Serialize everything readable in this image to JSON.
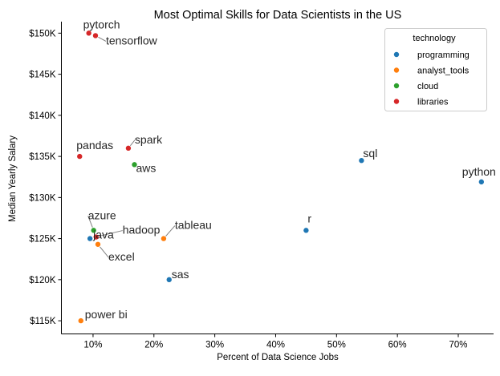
{
  "chart_data": {
    "type": "scatter",
    "title": "Most Optimal Skills for Data Scientists in the US",
    "xlabel": "Percent of Data Science Jobs",
    "ylabel": "Median Yearly Salary",
    "xlim": [
      4.8,
      75.8
    ],
    "ylim": [
      113400,
      151400
    ],
    "xticks": [
      10,
      20,
      30,
      40,
      50,
      60,
      70
    ],
    "xtick_labels": [
      "10%",
      "20%",
      "30%",
      "40%",
      "50%",
      "60%",
      "70%"
    ],
    "yticks": [
      115000,
      120000,
      125000,
      130000,
      135000,
      140000,
      145000,
      150000
    ],
    "ytick_labels": [
      "$115K",
      "$120K",
      "$125K",
      "$130K",
      "$135K",
      "$140K",
      "$145K",
      "$150K"
    ],
    "grid": false,
    "legend_title": "technology",
    "legend_position": "top-right",
    "colors": {
      "programming": "#1f77b4",
      "analyst_tools": "#ff7f0e",
      "cloud": "#2ca02c",
      "libraries": "#d62728"
    },
    "series": [
      {
        "name": "programming",
        "points": [
          {
            "label": "python",
            "x": 73.8,
            "y": 131900
          },
          {
            "label": "sql",
            "x": 54.1,
            "y": 134500
          },
          {
            "label": "r",
            "x": 45.0,
            "y": 126000
          },
          {
            "label": "sas",
            "x": 22.5,
            "y": 120000
          },
          {
            "label": "java",
            "x": 9.5,
            "y": 125000
          }
        ]
      },
      {
        "name": "analyst_tools",
        "points": [
          {
            "label": "tableau",
            "x": 21.6,
            "y": 125000
          },
          {
            "label": "excel",
            "x": 10.8,
            "y": 124300
          },
          {
            "label": "power bi",
            "x": 8.0,
            "y": 115000
          }
        ]
      },
      {
        "name": "cloud",
        "points": [
          {
            "label": "aws",
            "x": 16.8,
            "y": 134000
          },
          {
            "label": "azure",
            "x": 10.1,
            "y": 126000
          }
        ]
      },
      {
        "name": "libraries",
        "points": [
          {
            "label": "pytorch",
            "x": 9.3,
            "y": 150000
          },
          {
            "label": "tensorflow",
            "x": 10.4,
            "y": 149700
          },
          {
            "label": "spark",
            "x": 15.8,
            "y": 136000
          },
          {
            "label": "pandas",
            "x": 7.8,
            "y": 135000
          },
          {
            "label": "hadoop",
            "x": 10.5,
            "y": 125200
          }
        ]
      }
    ]
  }
}
